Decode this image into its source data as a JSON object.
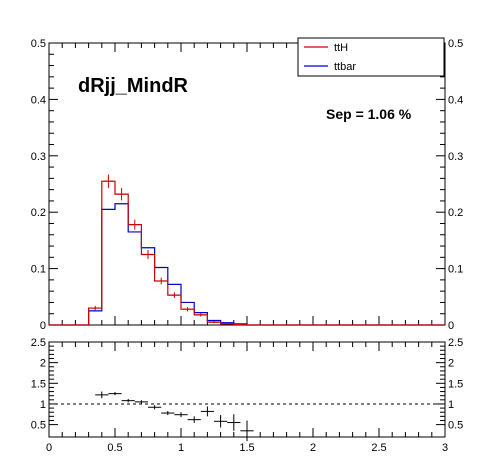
{
  "chart_data": [
    {
      "type": "histogram",
      "title": "dRjj_MindR",
      "annotation": "Sep = 1.06 %",
      "xlim": [
        0,
        3
      ],
      "ylim": [
        0,
        0.5
      ],
      "y_ticks": [
        "0",
        "0.1",
        "0.2",
        "0.3",
        "0.4",
        "0.5"
      ],
      "grid": false,
      "legend": {
        "placement": "top-right"
      },
      "bin_edges": [
        0.0,
        0.1,
        0.2,
        0.3,
        0.4,
        0.5,
        0.6,
        0.7,
        0.8,
        0.9,
        1.0,
        1.1,
        1.2,
        1.3,
        1.4,
        1.5,
        1.6,
        1.7,
        1.8,
        1.9,
        2.0,
        2.1,
        2.2,
        2.3,
        2.4,
        2.5,
        2.6,
        2.7,
        2.8,
        2.9,
        3.0
      ],
      "series": [
        {
          "name": "ttH",
          "color": "#cc0000",
          "with_error_bars": true,
          "values": [
            0,
            0,
            0,
            0.03,
            0.255,
            0.232,
            0.178,
            0.125,
            0.078,
            0.053,
            0.028,
            0.018,
            0.005,
            0.002,
            0.001,
            0,
            0,
            0,
            0,
            0,
            0,
            0,
            0,
            0,
            0,
            0,
            0,
            0,
            0,
            0
          ],
          "errors": [
            0,
            0,
            0,
            0.004,
            0.012,
            0.011,
            0.009,
            0.008,
            0.006,
            0.005,
            0.004,
            0.003,
            0.002,
            0.001,
            0.001,
            0,
            0,
            0,
            0,
            0,
            0,
            0,
            0,
            0,
            0,
            0,
            0,
            0,
            0,
            0
          ]
        },
        {
          "name": "ttbar",
          "color": "#0000cc",
          "with_error_bars": false,
          "values": [
            0,
            0,
            0,
            0.025,
            0.205,
            0.215,
            0.165,
            0.137,
            0.102,
            0.072,
            0.04,
            0.022,
            0.008,
            0.004,
            0.002,
            0,
            0,
            0,
            0,
            0,
            0,
            0,
            0,
            0,
            0,
            0,
            0,
            0,
            0,
            0
          ]
        }
      ]
    },
    {
      "type": "ratio",
      "xlim": [
        0,
        3
      ],
      "ylim": [
        0.2,
        2.5
      ],
      "x_ticks": [
        "0",
        "0.5",
        "1",
        "1.5",
        "2",
        "2.5",
        "3"
      ],
      "y_ticks": [
        "0.5",
        "1",
        "1.5",
        "2",
        "2.5"
      ],
      "reference_line": 1,
      "grid": false,
      "points": [
        {
          "x": 0.4,
          "y": 1.22,
          "xerr": 0.1,
          "yerr": 0.08
        },
        {
          "x": 0.5,
          "y": 1.25,
          "xerr": 0.1,
          "yerr": 0.04
        },
        {
          "x": 0.6,
          "y": 1.08,
          "xerr": 0.1,
          "yerr": 0.04
        },
        {
          "x": 0.7,
          "y": 1.05,
          "xerr": 0.1,
          "yerr": 0.04
        },
        {
          "x": 0.8,
          "y": 0.92,
          "xerr": 0.1,
          "yerr": 0.05
        },
        {
          "x": 0.9,
          "y": 0.78,
          "xerr": 0.1,
          "yerr": 0.05
        },
        {
          "x": 1.0,
          "y": 0.74,
          "xerr": 0.1,
          "yerr": 0.06
        },
        {
          "x": 1.1,
          "y": 0.62,
          "xerr": 0.1,
          "yerr": 0.08
        },
        {
          "x": 1.2,
          "y": 0.82,
          "xerr": 0.1,
          "yerr": 0.12
        },
        {
          "x": 1.3,
          "y": 0.58,
          "xerr": 0.1,
          "yerr": 0.15
        },
        {
          "x": 1.4,
          "y": 0.55,
          "xerr": 0.1,
          "yerr": 0.2
        },
        {
          "x": 1.5,
          "y": 0.35,
          "xerr": 0.1,
          "yerr": 0.25
        }
      ]
    }
  ]
}
